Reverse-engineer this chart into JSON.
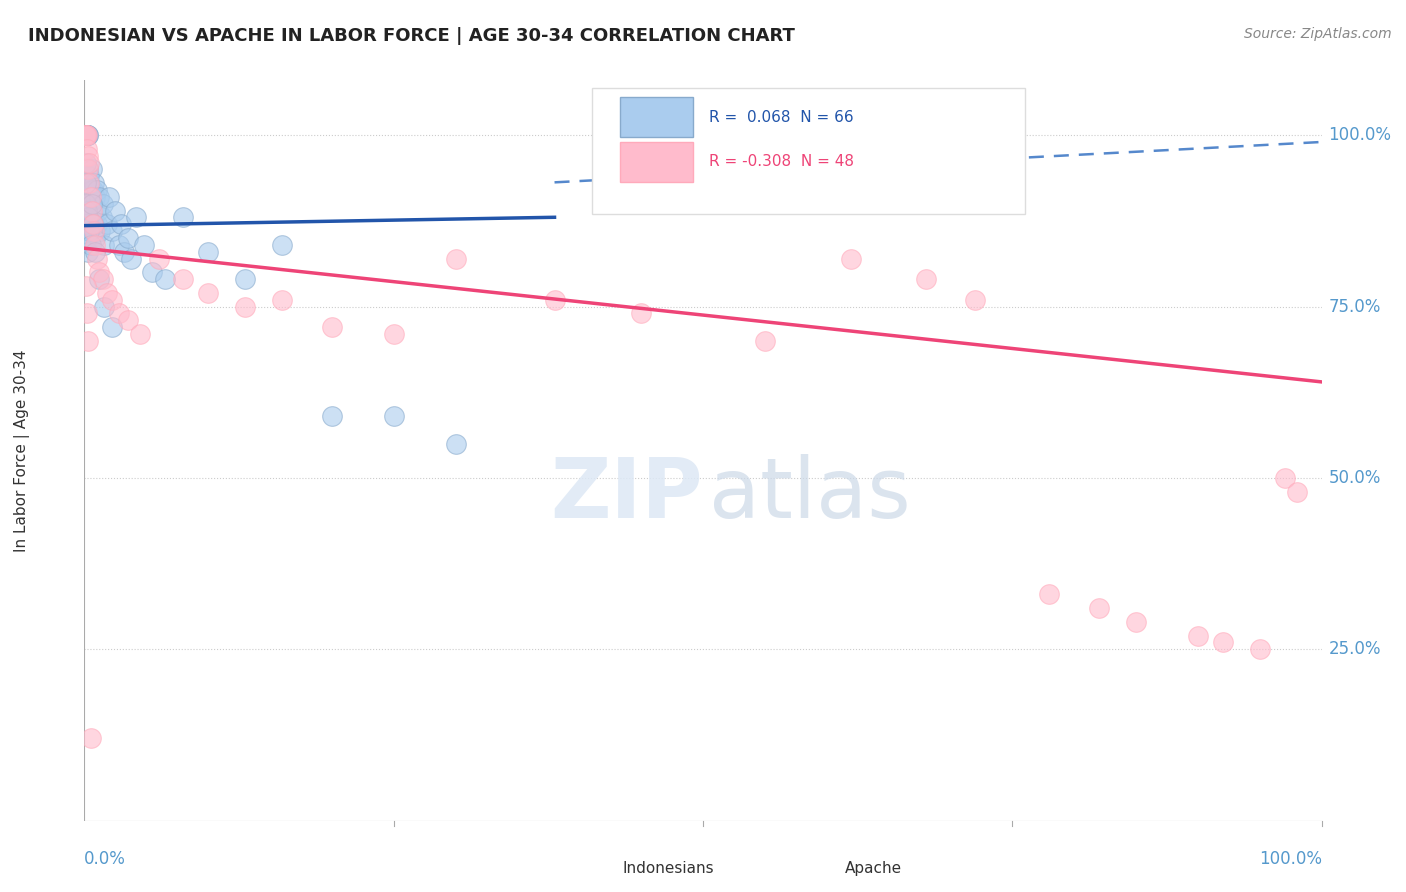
{
  "title": "INDONESIAN VS APACHE IN LABOR FORCE | AGE 30-34 CORRELATION CHART",
  "source": "Source: ZipAtlas.com",
  "ylabel": "In Labor Force | Age 30-34",
  "ytick_labels": [
    "100.0%",
    "75.0%",
    "50.0%",
    "25.0%"
  ],
  "ytick_values": [
    1.0,
    0.75,
    0.5,
    0.25
  ],
  "background_color": "#ffffff",
  "grid_color": "#cccccc",
  "blue_intercept": 0.868,
  "blue_slope": 0.032,
  "blue_dash_intercept": 0.895,
  "blue_dash_slope": 0.095,
  "pink_intercept": 0.835,
  "pink_slope": -0.195,
  "blue_points_x": [
    0.001,
    0.001,
    0.002,
    0.002,
    0.002,
    0.003,
    0.003,
    0.003,
    0.004,
    0.004,
    0.004,
    0.005,
    0.005,
    0.005,
    0.006,
    0.006,
    0.007,
    0.007,
    0.008,
    0.008,
    0.009,
    0.009,
    0.01,
    0.01,
    0.011,
    0.012,
    0.013,
    0.014,
    0.015,
    0.016,
    0.018,
    0.02,
    0.022,
    0.025,
    0.028,
    0.03,
    0.032,
    0.035,
    0.038,
    0.042,
    0.048,
    0.055,
    0.065,
    0.08,
    0.1,
    0.13,
    0.16,
    0.2,
    0.25,
    0.3,
    0.001,
    0.001,
    0.001,
    0.001,
    0.002,
    0.002,
    0.003,
    0.003,
    0.004,
    0.005,
    0.006,
    0.007,
    0.009,
    0.012,
    0.016,
    0.022
  ],
  "blue_points_y": [
    1.0,
    1.0,
    1.0,
    1.0,
    1.0,
    1.0,
    1.0,
    0.95,
    0.94,
    0.93,
    0.91,
    0.92,
    0.9,
    0.88,
    0.95,
    0.87,
    0.92,
    0.88,
    0.93,
    0.86,
    0.91,
    0.85,
    0.92,
    0.87,
    0.89,
    0.91,
    0.86,
    0.88,
    0.9,
    0.84,
    0.87,
    0.91,
    0.86,
    0.89,
    0.84,
    0.87,
    0.83,
    0.85,
    0.82,
    0.88,
    0.84,
    0.8,
    0.79,
    0.88,
    0.83,
    0.79,
    0.84,
    0.59,
    0.59,
    0.55,
    0.96,
    0.93,
    0.9,
    0.87,
    0.89,
    0.85,
    0.88,
    0.83,
    0.86,
    0.84,
    0.9,
    0.87,
    0.83,
    0.79,
    0.75,
    0.72
  ],
  "pink_points_x": [
    0.001,
    0.001,
    0.001,
    0.002,
    0.002,
    0.003,
    0.003,
    0.004,
    0.004,
    0.005,
    0.006,
    0.007,
    0.008,
    0.009,
    0.01,
    0.012,
    0.015,
    0.018,
    0.022,
    0.028,
    0.035,
    0.045,
    0.06,
    0.08,
    0.1,
    0.13,
    0.16,
    0.2,
    0.25,
    0.3,
    0.38,
    0.45,
    0.55,
    0.62,
    0.68,
    0.72,
    0.78,
    0.82,
    0.85,
    0.9,
    0.92,
    0.95,
    0.97,
    0.98,
    0.001,
    0.002,
    0.003,
    0.005
  ],
  "pink_points_y": [
    1.0,
    1.0,
    1.0,
    1.0,
    0.98,
    0.97,
    0.95,
    0.96,
    0.93,
    0.91,
    0.89,
    0.87,
    0.86,
    0.84,
    0.82,
    0.8,
    0.79,
    0.77,
    0.76,
    0.74,
    0.73,
    0.71,
    0.82,
    0.79,
    0.77,
    0.75,
    0.76,
    0.72,
    0.71,
    0.82,
    0.76,
    0.74,
    0.7,
    0.82,
    0.79,
    0.76,
    0.33,
    0.31,
    0.29,
    0.27,
    0.26,
    0.25,
    0.5,
    0.48,
    0.78,
    0.74,
    0.7,
    0.12
  ]
}
